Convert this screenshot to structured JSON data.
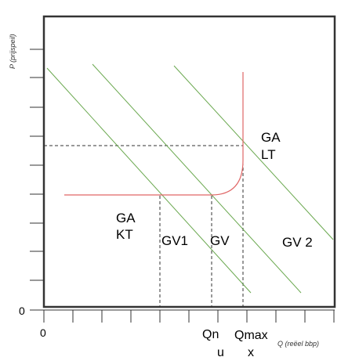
{
  "axes": {
    "y_label": "P (prijspeil)",
    "x_label": "Q (reëel bbp)",
    "origin_x_label": "0",
    "origin_y_label": "0"
  },
  "labels": {
    "ga_lt_line1": "GA",
    "ga_lt_line2": "LT",
    "ga_kt_line1": "GA",
    "ga_kt_line2": "KT",
    "gv1": "GV1",
    "gv": "GV",
    "gv2": "GV 2",
    "q_n_line1": "Qn",
    "q_n_line2": "u",
    "q_max_line1": "Qmax",
    "q_max_line2": "x"
  },
  "colors": {
    "demand_curves": "#6aa84f",
    "supply_curve": "#e06666",
    "frame": "#333333",
    "guides": "#333333"
  }
}
